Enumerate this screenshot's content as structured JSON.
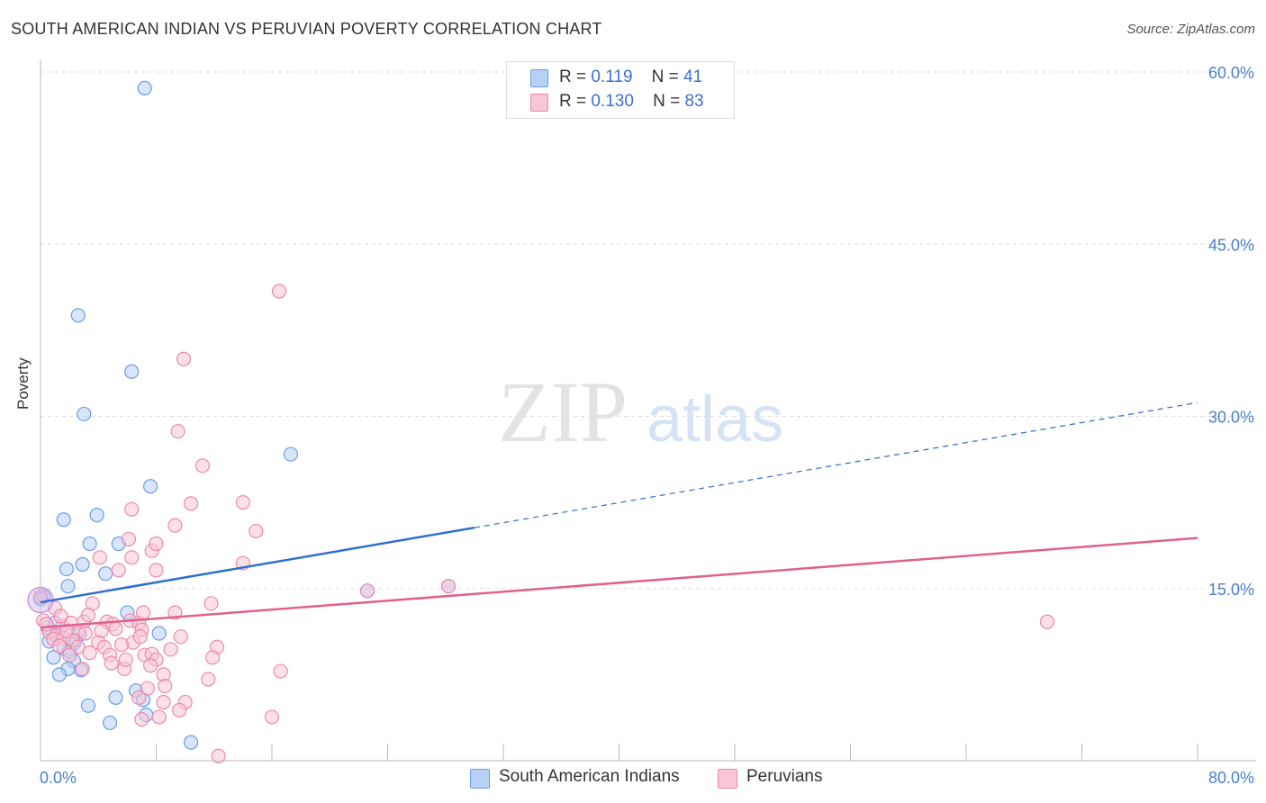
{
  "chart_data": {
    "type": "scatter",
    "title": "SOUTH AMERICAN INDIAN VS PERUVIAN POVERTY CORRELATION CHART",
    "source": "Source: ZipAtlas.com",
    "ylabel": "Poverty",
    "xlabel": "",
    "xlim": [
      0,
      80
    ],
    "ylim": [
      0,
      60
    ],
    "x_tick_labels": [
      "0.0%",
      "80.0%"
    ],
    "y_tick_labels": [
      "15.0%",
      "30.0%",
      "45.0%",
      "60.0%"
    ],
    "y_ticks": [
      15,
      30,
      45,
      60
    ],
    "grid": true,
    "watermark": "ZIPatlas",
    "legend": {
      "position": "top-center",
      "r_label": "R =",
      "n_label": "N =",
      "entries": [
        {
          "name": "South American Indians",
          "r": "0.119",
          "n": "41",
          "color": "#6b9ce8",
          "fill": "#b8d0f5"
        },
        {
          "name": "Peruvians",
          "r": "0.130",
          "n": "83",
          "color": "#ec8aac",
          "fill": "#f8c6d6"
        }
      ]
    },
    "series": [
      {
        "name": "South American Indians",
        "color": "#6b9ce8",
        "fill": "#b8d0f5",
        "trend": {
          "x0": 0,
          "y0": 13.8,
          "x1": 30,
          "y1": 20.3,
          "dash_to_x": 80,
          "dash_to_y": 31.2,
          "color": "#2f6fd0"
        },
        "points": [
          [
            7.2,
            58.6
          ],
          [
            2.6,
            38.8
          ],
          [
            6.3,
            33.9
          ],
          [
            3.0,
            30.2
          ],
          [
            17.3,
            26.7
          ],
          [
            7.6,
            23.9
          ],
          [
            1.6,
            21.0
          ],
          [
            3.9,
            21.4
          ],
          [
            3.4,
            18.9
          ],
          [
            5.4,
            18.9
          ],
          [
            2.9,
            17.1
          ],
          [
            1.8,
            16.7
          ],
          [
            4.5,
            16.3
          ],
          [
            1.9,
            15.2
          ],
          [
            0.2,
            14.3
          ],
          [
            22.6,
            14.8
          ],
          [
            28.2,
            15.2
          ],
          [
            6.0,
            12.9
          ],
          [
            0.5,
            11.6
          ],
          [
            1.2,
            11.0
          ],
          [
            2.7,
            11.0
          ],
          [
            0.6,
            10.4
          ],
          [
            2.3,
            10.2
          ],
          [
            1.6,
            9.8
          ],
          [
            2.0,
            9.5
          ],
          [
            8.2,
            11.1
          ],
          [
            0.9,
            9.0
          ],
          [
            2.3,
            8.7
          ],
          [
            1.9,
            8.0
          ],
          [
            2.8,
            7.9
          ],
          [
            1.3,
            7.5
          ],
          [
            6.6,
            6.1
          ],
          [
            5.2,
            5.5
          ],
          [
            7.1,
            5.3
          ],
          [
            3.3,
            4.8
          ],
          [
            7.3,
            4.0
          ],
          [
            4.8,
            3.3
          ],
          [
            10.4,
            1.6
          ],
          [
            0.0,
            14.1
          ],
          [
            1.0,
            12.0
          ],
          [
            2.4,
            10.5
          ]
        ]
      },
      {
        "name": "Peruvians",
        "color": "#ec8aac",
        "fill": "#f8c6d6",
        "trend": {
          "x0": 0,
          "y0": 11.6,
          "x1": 80,
          "y1": 19.4,
          "color": "#e0608e"
        },
        "points": [
          [
            16.5,
            40.9
          ],
          [
            9.9,
            35.0
          ],
          [
            9.5,
            28.7
          ],
          [
            11.2,
            25.7
          ],
          [
            14.0,
            22.5
          ],
          [
            6.3,
            21.9
          ],
          [
            10.4,
            22.4
          ],
          [
            9.3,
            20.5
          ],
          [
            14.9,
            20.0
          ],
          [
            6.1,
            19.3
          ],
          [
            7.7,
            18.3
          ],
          [
            8.0,
            18.9
          ],
          [
            4.1,
            17.7
          ],
          [
            6.3,
            17.7
          ],
          [
            14.0,
            17.2
          ],
          [
            5.4,
            16.6
          ],
          [
            8.0,
            16.6
          ],
          [
            0.0,
            14.3
          ],
          [
            0.2,
            12.2
          ],
          [
            3.6,
            13.7
          ],
          [
            11.8,
            13.7
          ],
          [
            22.6,
            14.8
          ],
          [
            28.2,
            15.2
          ],
          [
            69.6,
            12.1
          ],
          [
            1.5,
            11.7
          ],
          [
            2.1,
            12.0
          ],
          [
            3.0,
            12.1
          ],
          [
            4.6,
            12.1
          ],
          [
            5.0,
            11.9
          ],
          [
            6.2,
            12.2
          ],
          [
            6.8,
            12.0
          ],
          [
            7.1,
            12.9
          ],
          [
            0.6,
            11.2
          ],
          [
            1.1,
            10.9
          ],
          [
            2.6,
            11.2
          ],
          [
            3.1,
            11.1
          ],
          [
            4.2,
            11.3
          ],
          [
            5.2,
            11.5
          ],
          [
            7.0,
            11.4
          ],
          [
            9.3,
            12.9
          ],
          [
            0.9,
            10.6
          ],
          [
            1.6,
            10.7
          ],
          [
            2.2,
            10.5
          ],
          [
            4.0,
            10.3
          ],
          [
            6.4,
            10.3
          ],
          [
            9.7,
            10.8
          ],
          [
            1.3,
            10.0
          ],
          [
            2.6,
            9.9
          ],
          [
            4.4,
            9.9
          ],
          [
            5.6,
            10.1
          ],
          [
            9.0,
            9.7
          ],
          [
            12.2,
            9.9
          ],
          [
            3.4,
            9.4
          ],
          [
            4.8,
            9.2
          ],
          [
            7.2,
            9.2
          ],
          [
            7.7,
            9.3
          ],
          [
            8.0,
            8.8
          ],
          [
            11.9,
            9.0
          ],
          [
            2.9,
            8.0
          ],
          [
            5.8,
            8.0
          ],
          [
            8.5,
            7.5
          ],
          [
            11.6,
            7.1
          ],
          [
            16.6,
            7.8
          ],
          [
            7.4,
            6.3
          ],
          [
            8.6,
            6.5
          ],
          [
            6.8,
            5.5
          ],
          [
            8.5,
            5.1
          ],
          [
            10.0,
            5.1
          ],
          [
            9.6,
            4.4
          ],
          [
            7.0,
            3.6
          ],
          [
            8.2,
            3.8
          ],
          [
            16.0,
            3.8
          ],
          [
            12.3,
            0.4
          ],
          [
            1.0,
            13.3
          ],
          [
            0.4,
            11.9
          ],
          [
            1.8,
            11.3
          ],
          [
            5.9,
            8.8
          ],
          [
            7.6,
            8.3
          ],
          [
            3.3,
            12.7
          ],
          [
            2.0,
            9.2
          ],
          [
            4.9,
            8.5
          ],
          [
            6.9,
            10.8
          ],
          [
            1.4,
            12.6
          ]
        ]
      }
    ]
  }
}
